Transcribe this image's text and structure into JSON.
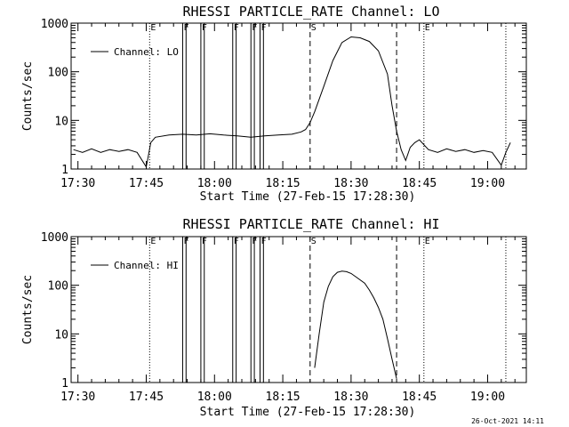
{
  "chart_data": [
    {
      "type": "line",
      "title": "RHESSI PARTICLE_RATE Channel: LO",
      "xlabel": "Start Time (27-Feb-15 17:28:30)",
      "ylabel": "Counts/sec",
      "yscale": "log",
      "ylim": [
        1,
        1000
      ],
      "xlim": [
        "17:28:30",
        "19:08:30"
      ],
      "x_ticks": [
        "17:30",
        "17:45",
        "18:00",
        "18:15",
        "18:30",
        "18:45",
        "19:00"
      ],
      "y_ticks": [
        "1",
        "10",
        "100",
        "1000"
      ],
      "legend": "top-left",
      "series": [
        {
          "name": "Channel: LO",
          "x": [
            "17:29",
            "17:31",
            "17:33",
            "17:35",
            "17:37",
            "17:39",
            "17:41",
            "17:43",
            "17:45",
            "17:46",
            "17:47",
            "17:50",
            "17:53",
            "17:56",
            "17:59",
            "18:02",
            "18:05",
            "18:08",
            "18:11",
            "18:14",
            "18:17",
            "18:19",
            "18:20",
            "18:21",
            "18:22",
            "18:24",
            "18:26",
            "18:28",
            "18:30",
            "18:32",
            "18:34",
            "18:36",
            "18:38",
            "18:39",
            "18:40",
            "18:41",
            "18:42",
            "18:43",
            "18:44",
            "18:45",
            "18:47",
            "18:49",
            "18:51",
            "18:53",
            "18:55",
            "18:57",
            "18:59",
            "19:01",
            "19:03",
            "19:04",
            "19:05"
          ],
          "y": [
            2.5,
            2.2,
            2.6,
            2.2,
            2.5,
            2.3,
            2.5,
            2.2,
            1.1,
            3.5,
            4.5,
            5.0,
            5.2,
            5.0,
            5.3,
            5.0,
            4.8,
            4.5,
            4.8,
            5.0,
            5.2,
            5.8,
            6.5,
            9,
            15,
            50,
            170,
            400,
            520,
            500,
            420,
            270,
            90,
            20,
            6,
            2.5,
            1.5,
            2.8,
            3.5,
            4.0,
            2.5,
            2.2,
            2.6,
            2.3,
            2.5,
            2.2,
            2.4,
            2.2,
            1.2,
            2.2,
            3.5
          ]
        }
      ],
      "markers": [
        {
          "time": "17:45:45",
          "style": "dotted",
          "label": "E"
        },
        {
          "time": "17:53:00",
          "style": "solid",
          "label": "F"
        },
        {
          "time": "17:53:45",
          "style": "solid",
          "label": ""
        },
        {
          "time": "17:57:00",
          "style": "solid",
          "label": "F"
        },
        {
          "time": "17:57:45",
          "style": "solid",
          "label": ""
        },
        {
          "time": "18:04:00",
          "style": "solid",
          "label": "F"
        },
        {
          "time": "18:04:45",
          "style": "solid",
          "label": ""
        },
        {
          "time": "18:08:00",
          "style": "solid",
          "label": "F"
        },
        {
          "time": "18:08:45",
          "style": "solid",
          "label": ""
        },
        {
          "time": "18:10:00",
          "style": "solid",
          "label": "F"
        },
        {
          "time": "18:10:45",
          "style": "solid",
          "label": ""
        },
        {
          "time": "18:21:00",
          "style": "dashed",
          "label": "S"
        },
        {
          "time": "18:40:00",
          "style": "dashed",
          "label": ""
        },
        {
          "time": "18:46:00",
          "style": "dotted",
          "label": "E"
        },
        {
          "time": "19:04:00",
          "style": "dotted",
          "label": ""
        }
      ]
    },
    {
      "type": "line",
      "title": "RHESSI PARTICLE_RATE Channel: HI",
      "xlabel": "Start Time (27-Feb-15 17:28:30)",
      "ylabel": "Counts/sec",
      "yscale": "log",
      "ylim": [
        1,
        1000
      ],
      "xlim": [
        "17:28:30",
        "19:08:30"
      ],
      "x_ticks": [
        "17:30",
        "17:45",
        "18:00",
        "18:15",
        "18:30",
        "18:45",
        "19:00"
      ],
      "y_ticks": [
        "1",
        "10",
        "100",
        "1000"
      ],
      "legend": "top-left",
      "series": [
        {
          "name": "Channel: HI",
          "x": [
            "18:22",
            "18:23",
            "18:24",
            "18:25",
            "18:26",
            "18:27",
            "18:28",
            "18:29",
            "18:30",
            "18:31",
            "18:33",
            "18:34",
            "18:35",
            "18:36",
            "18:37",
            "18:38",
            "18:39",
            "18:40"
          ],
          "y": [
            2,
            10,
            45,
            95,
            150,
            185,
            195,
            190,
            175,
            150,
            110,
            80,
            55,
            35,
            20,
            8,
            3,
            1.2
          ]
        }
      ],
      "markers": [
        {
          "time": "17:45:45",
          "style": "dotted",
          "label": "E"
        },
        {
          "time": "17:53:00",
          "style": "solid",
          "label": "F"
        },
        {
          "time": "17:53:45",
          "style": "solid",
          "label": ""
        },
        {
          "time": "17:57:00",
          "style": "solid",
          "label": "F"
        },
        {
          "time": "17:57:45",
          "style": "solid",
          "label": ""
        },
        {
          "time": "18:04:00",
          "style": "solid",
          "label": "F"
        },
        {
          "time": "18:04:45",
          "style": "solid",
          "label": ""
        },
        {
          "time": "18:08:00",
          "style": "solid",
          "label": "F"
        },
        {
          "time": "18:08:45",
          "style": "solid",
          "label": ""
        },
        {
          "time": "18:10:00",
          "style": "solid",
          "label": "F"
        },
        {
          "time": "18:10:45",
          "style": "solid",
          "label": ""
        },
        {
          "time": "18:21:00",
          "style": "dashed",
          "label": "S"
        },
        {
          "time": "18:40:00",
          "style": "dashed",
          "label": ""
        },
        {
          "time": "18:46:00",
          "style": "dotted",
          "label": "E"
        },
        {
          "time": "19:04:00",
          "style": "dotted",
          "label": ""
        }
      ]
    }
  ],
  "timestamp": "26-Oct-2021 14:11"
}
